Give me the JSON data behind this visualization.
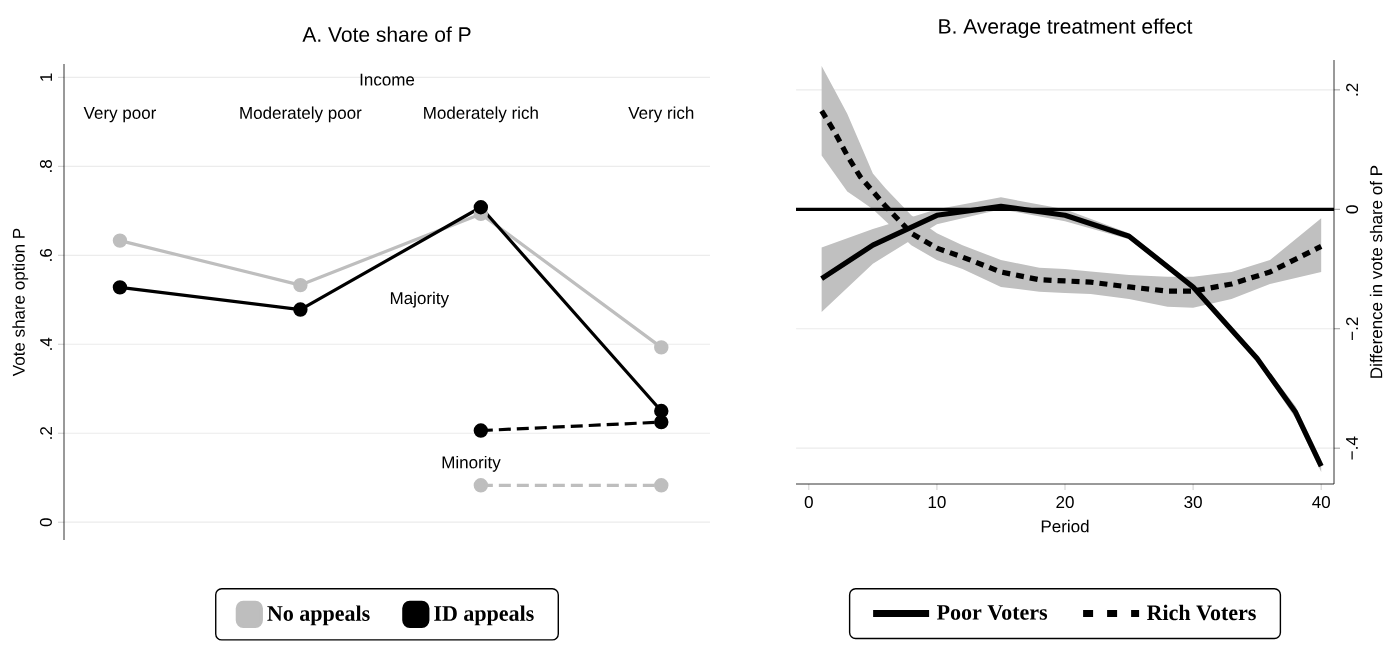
{
  "chart_data": [
    {
      "type": "line",
      "title": "A. Vote share of P",
      "xlabel": "Income",
      "ylabel": "Vote share option P",
      "categories": [
        "Very poor",
        "Moderately poor",
        "Moderately rich",
        "Very rich"
      ],
      "series": [
        {
          "name": "No appeals",
          "color": "#bebebe",
          "values": [
            0.633,
            0.533,
            0.693,
            0.393
          ]
        },
        {
          "name": "ID appeals",
          "color": "#000000",
          "values": [
            0.528,
            0.478,
            0.708,
            0.25
          ]
        },
        {
          "color": "#000000",
          "line_style": "dashed",
          "values": [
            null,
            null,
            0.206,
            0.225
          ]
        },
        {
          "color": "#bebebe",
          "line_style": "dashed",
          "values": [
            null,
            null,
            0.083,
            0.083
          ]
        }
      ],
      "annotations": [
        "Majority",
        "Minority"
      ],
      "ylim": [
        -0.04,
        1.03
      ],
      "yticks": [
        0,
        {
          "value": 0.2,
          "label": ".2"
        },
        {
          "value": 0.4,
          "label": ".4"
        },
        {
          "value": 0.6,
          "label": ".6"
        },
        {
          "value": 0.8,
          "label": ".8"
        },
        1
      ],
      "grid": "y",
      "legend": "bottom",
      "marker": "circle"
    },
    {
      "type": "line",
      "title": "B. Average treatment effect",
      "xlabel": "Period",
      "ylabel": "Difference in vote share of P",
      "series": [
        {
          "name": "Poor Voters",
          "color": "#000000",
          "line_style": "solid",
          "x": [
            1,
            5,
            10,
            15,
            20,
            25,
            30,
            35,
            38,
            40
          ],
          "values": [
            -0.116,
            -0.06,
            -0.01,
            0.005,
            -0.01,
            -0.045,
            -0.13,
            -0.25,
            -0.34,
            -0.43
          ],
          "lower": [
            -0.172,
            -0.091,
            -0.025,
            0.0,
            -0.02,
            -0.05,
            -0.135,
            -0.255,
            -0.35,
            -0.44
          ],
          "upper": [
            -0.064,
            -0.033,
            0.0,
            0.02,
            0.0,
            -0.04,
            -0.125,
            -0.245,
            -0.33,
            -0.42
          ]
        },
        {
          "name": "Rich Voters",
          "color": "#000000",
          "line_style": "dashed",
          "x": [
            1,
            2,
            3,
            4,
            5,
            6,
            8,
            10,
            12,
            15,
            18,
            20,
            22,
            25,
            28,
            30,
            33,
            36,
            40
          ],
          "values": [
            0.165,
            0.13,
            0.09,
            0.055,
            0.03,
            0.005,
            -0.04,
            -0.065,
            -0.08,
            -0.105,
            -0.118,
            -0.12,
            -0.122,
            -0.13,
            -0.137,
            -0.137,
            -0.125,
            -0.105,
            -0.062
          ],
          "lower": [
            0.09,
            0.06,
            0.03,
            0.015,
            0.0,
            -0.02,
            -0.06,
            -0.085,
            -0.1,
            -0.13,
            -0.138,
            -0.14,
            -0.142,
            -0.15,
            -0.163,
            -0.165,
            -0.15,
            -0.125,
            -0.105
          ],
          "upper": [
            0.24,
            0.2,
            0.16,
            0.11,
            0.06,
            0.035,
            -0.01,
            -0.04,
            -0.06,
            -0.085,
            -0.098,
            -0.1,
            -0.104,
            -0.11,
            -0.113,
            -0.113,
            -0.105,
            -0.085,
            -0.015
          ]
        }
      ],
      "ref_lines": [
        {
          "axis": "y",
          "value": 0,
          "color": "#000000"
        }
      ],
      "xlim": [
        -1,
        41
      ],
      "xticks": [
        0,
        10,
        20,
        30,
        40
      ],
      "ylim": [
        -0.46,
        0.25
      ],
      "yticks": [
        {
          "value": -0.4,
          "label": "−.4"
        },
        {
          "value": -0.2,
          "label": "−.2"
        },
        0,
        {
          "value": 0.2,
          "label": ".2"
        }
      ],
      "grid": "y",
      "legend": "bottom"
    }
  ]
}
